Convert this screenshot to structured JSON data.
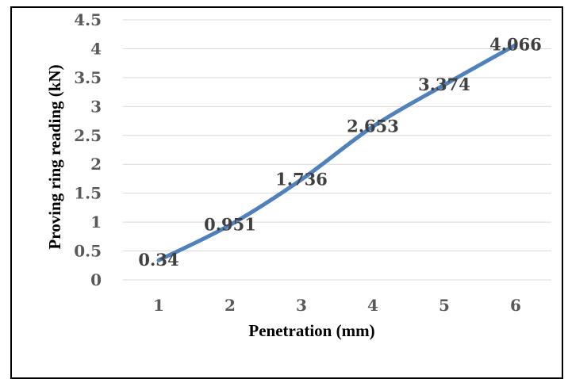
{
  "chart_data": {
    "type": "line",
    "title": "",
    "xlabel": "Penetration (mm)",
    "ylabel": "Proving ring reading (kN)",
    "categories": [
      "1",
      "2",
      "3",
      "4",
      "5",
      "6"
    ],
    "series": [
      {
        "values": [
          0.34,
          0.951,
          1.736,
          2.653,
          3.374,
          4.066
        ]
      }
    ],
    "data_labels": [
      "0.34",
      "0.951",
      "1.736",
      "2.653",
      "3.374",
      "4.066"
    ],
    "y_ticks": [
      "0",
      "0.5",
      "1",
      "1.5",
      "2",
      "2.5",
      "3",
      "3.5",
      "4",
      "4.5"
    ],
    "ylim": [
      0,
      4.5
    ],
    "grid": true,
    "legend": "none",
    "colors": {
      "line": "#4f81bd",
      "grid": "#d9d9d9",
      "frame": "#000000"
    }
  }
}
